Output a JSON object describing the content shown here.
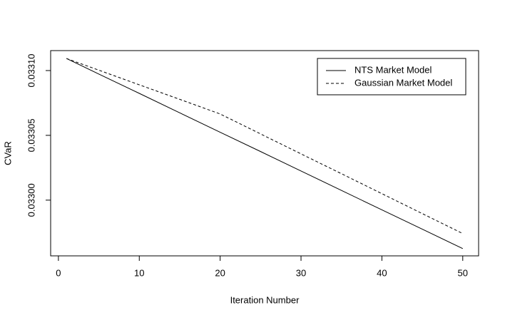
{
  "chart_data": {
    "type": "line",
    "xlabel": "Iteration Number",
    "ylabel": "CVaR",
    "x": [
      1,
      5,
      10,
      15,
      20,
      25,
      30,
      35,
      40,
      45,
      50
    ],
    "series": [
      {
        "name": "NTS Market Model",
        "color": "#000000",
        "dash": "solid",
        "values": [
          0.0331093,
          0.0330973,
          0.0330824,
          0.0330674,
          0.0330524,
          0.0330375,
          0.0330225,
          0.0330075,
          0.0329925,
          0.0329776,
          0.0329626
        ]
      },
      {
        "name": "Gaussian Market Model",
        "color": "#000000",
        "dash": "dashed",
        "values": [
          0.0331093,
          0.0331003,
          0.033089,
          0.0330778,
          0.0330665,
          0.0330511,
          0.0330357,
          0.0330204,
          0.033005,
          0.0329896,
          0.0329742
        ]
      }
    ],
    "xlim": [
      -0.96,
      51.96
    ],
    "xticks": [
      0,
      10,
      20,
      30,
      40,
      50
    ],
    "ylim": [
      0.032957,
      0.0331154
    ],
    "yticks": [
      {
        "value": 0.033,
        "label": "0.03300"
      },
      0.03305,
      {
        "value": 0.0331,
        "label": "0.03310"
      }
    ],
    "legend": "top-right",
    "grid": false
  }
}
